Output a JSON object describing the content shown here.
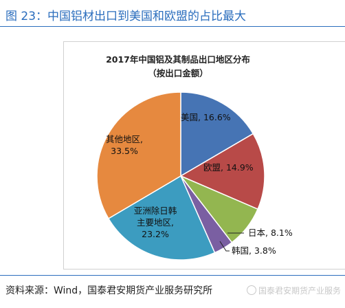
{
  "figure": {
    "title": "图 23：中国铝材出口到美国和欧盟的占比最大",
    "source": "资料来源：Wind，国泰君安期货产业服务研究所"
  },
  "watermark": {
    "text": "国泰君安期货产业服务",
    "icon": "wechat-logo-icon"
  },
  "chart_data": {
    "type": "pie",
    "title": "2017年中国铝及其制品出口地区分布",
    "subtitle": "（按出口金额）",
    "categories": [
      "美国",
      "欧盟",
      "日本",
      "韩国",
      "亚洲除日韩主要地区",
      "其他地区"
    ],
    "values": [
      16.6,
      14.9,
      8.1,
      3.8,
      23.2,
      33.5
    ],
    "data_labels": [
      "美国, 16.6%",
      "欧盟, 14.9%",
      "日本, 8.1%",
      "韩国, 3.8%",
      "亚洲除日韩主要地区, 23.2%",
      "其他地区, 33.5%"
    ],
    "colors": [
      "#4674b4",
      "#b84a48",
      "#93b650",
      "#7a5fa2",
      "#3c9cc0",
      "#e6893f"
    ],
    "legend": "none"
  }
}
